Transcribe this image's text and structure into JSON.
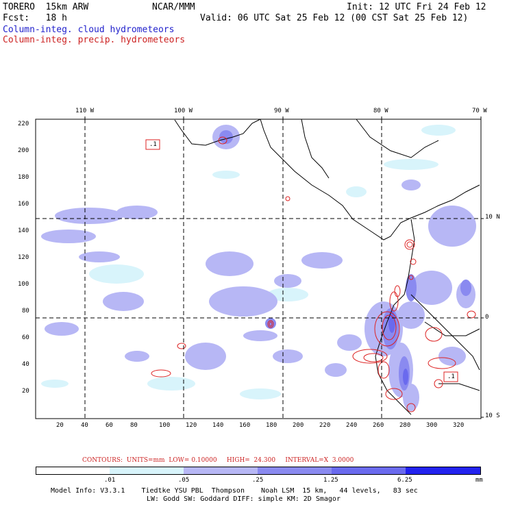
{
  "header": {
    "model": "TORERO  15km ARW",
    "org": "NCAR/MMM",
    "init": "Init: 12 UTC Fri 24 Feb 12",
    "fcst": "Fcst:   18 h",
    "valid": "Valid: 06 UTC Sat 25 Feb 12 (00 CST Sat 25 Feb 12)",
    "field1": "Column-integ. cloud hydrometeors",
    "field2": "Column-integ. precip. hydrometeors"
  },
  "map": {
    "lon_labels": [
      "110 W",
      "100 W",
      "90 W",
      "80 W",
      "70 W"
    ],
    "lat_labels": [
      "10 N",
      "0",
      "10 S"
    ],
    "y_ticks": [
      "220",
      "200",
      "180",
      "160",
      "140",
      "120",
      "100",
      "80",
      "60",
      "40",
      "20"
    ],
    "x_ticks": [
      "20",
      "40",
      "60",
      "80",
      "100",
      "120",
      "140",
      "160",
      "180",
      "200",
      "220",
      "240",
      "260",
      "280",
      "300",
      "320"
    ],
    "box_labels": [
      ".1",
      ".1"
    ]
  },
  "colorbar": {
    "contours_text": "CONTOURS:  UNITS=mm  LOW= 0.10000     HIGH=  24.300     INTERVAL=X  3.0000",
    "labels": [
      ".01",
      ".05",
      ".25",
      "1.25",
      "6.25"
    ],
    "unit": "mm",
    "colors": [
      "#ffffff",
      "#d8f4fb",
      "#b7b7f5",
      "#8a8af0",
      "#6a6aee",
      "#3e3eee",
      "#1a1aee"
    ]
  },
  "footer": {
    "line1": "Model Info: V3.3.1    Tiedtke YSU PBL  Thompson    Noah LSM  15 km,   44 levels,   83 sec",
    "line2": "LW: Godd SW: Goddard DIFF: simple KM: 2D Smagor"
  }
}
